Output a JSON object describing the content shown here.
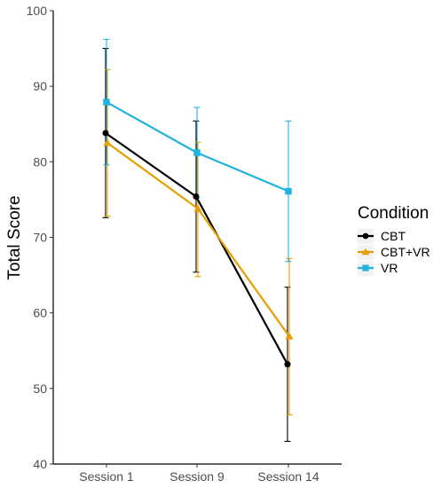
{
  "chart_data": {
    "type": "line",
    "title": "",
    "xlabel": "",
    "ylabel": "Total Score",
    "categories": [
      "Session 1",
      "Session 9",
      "Session 14"
    ],
    "ylim": [
      40,
      100
    ],
    "yticks": [
      "40",
      "50",
      "60",
      "70",
      "80",
      "90",
      "100"
    ],
    "grid": false,
    "legend": {
      "title": "Condition",
      "placement": "right"
    },
    "series": [
      {
        "name": "CBT",
        "color": "#000000",
        "marker": "circle",
        "values": [
          83.8,
          75.4,
          53.2
        ],
        "lower": [
          72.6,
          65.4,
          43.0
        ],
        "upper": [
          95.0,
          85.4,
          63.4
        ]
      },
      {
        "name": "CBT+VR",
        "color": "#E69F00",
        "marker": "triangle",
        "values": [
          82.5,
          73.8,
          56.9
        ],
        "lower": [
          72.8,
          64.8,
          46.5
        ],
        "upper": [
          92.2,
          82.6,
          67.2
        ]
      },
      {
        "name": "VR",
        "color": "#1FB3E0",
        "marker": "square",
        "values": [
          87.9,
          81.2,
          76.1
        ],
        "lower": [
          79.6,
          75.2,
          66.8
        ],
        "upper": [
          96.2,
          87.2,
          85.4
        ]
      }
    ]
  }
}
